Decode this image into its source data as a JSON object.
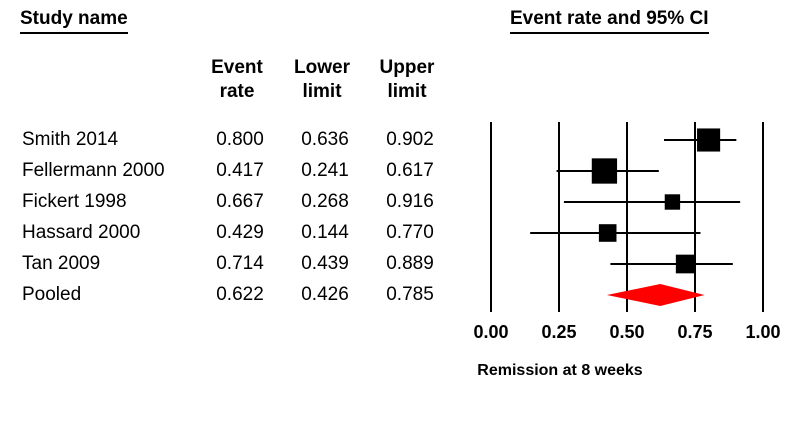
{
  "headers": {
    "study_name": "Study name",
    "event_rate_ci": "Event rate and 95% CI"
  },
  "columns": [
    {
      "line1": "Event",
      "line2": "rate"
    },
    {
      "line1": "Lower",
      "line2": "limit"
    },
    {
      "line1": "Upper",
      "line2": "limit"
    }
  ],
  "chart_data": {
    "type": "forest",
    "xlabel": "Remission at 8 weeks",
    "xlim": [
      0.0,
      1.0
    ],
    "ticks": [
      "0.00",
      "0.25",
      "0.50",
      "0.75",
      "1.00"
    ],
    "tick_values": [
      0.0,
      0.25,
      0.5,
      0.75,
      1.0
    ],
    "studies": [
      {
        "name": "Smith 2014",
        "rate": "0.800",
        "lower": "0.636",
        "upper": "0.902",
        "weight": 1.05
      },
      {
        "name": "Fellermann 2000",
        "rate": "0.417",
        "lower": "0.241",
        "upper": "0.617",
        "weight": 1.15
      },
      {
        "name": "Fickert 1998",
        "rate": "0.667",
        "lower": "0.268",
        "upper": "0.916",
        "weight": 0.7
      },
      {
        "name": "Hassard 2000",
        "rate": "0.429",
        "lower": "0.144",
        "upper": "0.770",
        "weight": 0.8
      },
      {
        "name": "Tan 2009",
        "rate": "0.714",
        "lower": "0.439",
        "upper": "0.889",
        "weight": 0.85
      }
    ],
    "pooled": {
      "name": "Pooled",
      "rate": "0.622",
      "lower": "0.426",
      "upper": "0.785"
    },
    "pooled_color": "#ff0000",
    "marker_color": "#000000"
  }
}
